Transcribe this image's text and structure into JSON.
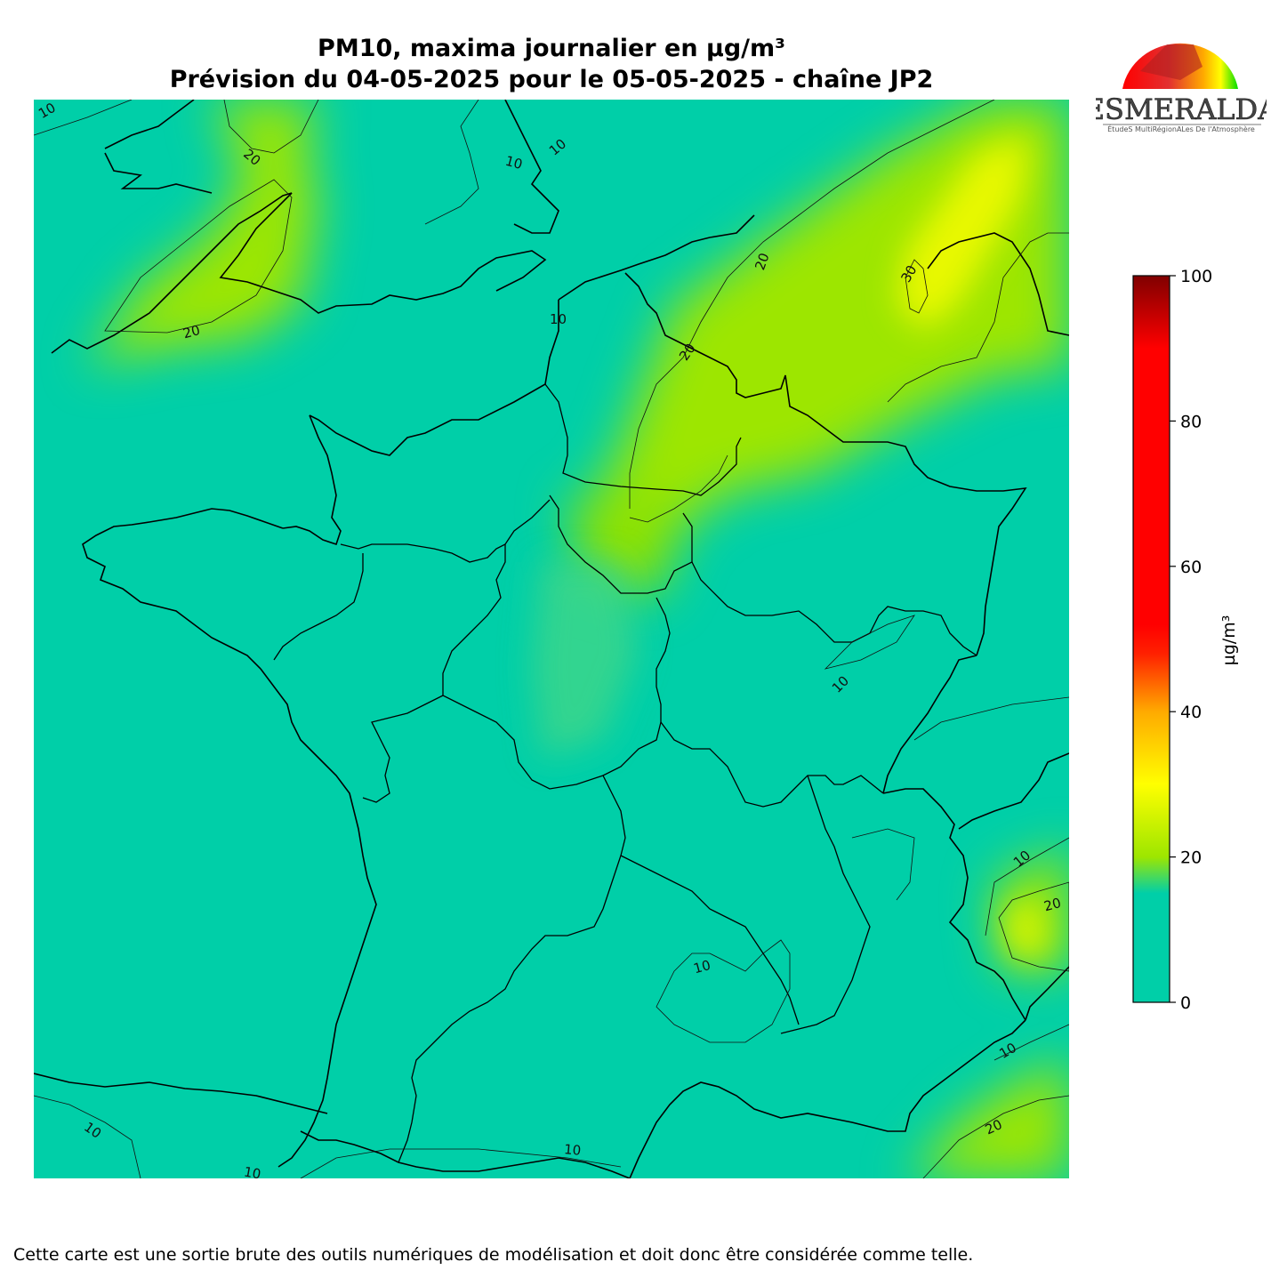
{
  "title": {
    "line1": "PM10, maxima journalier en µg/m³",
    "line2": "Prévision du 04-05-2025 pour le 05-05-2025 - chaîne JP2"
  },
  "colorbar": {
    "unit": "µg/m³",
    "ticks": [
      "0",
      "20",
      "40",
      "60",
      "80",
      "100"
    ],
    "range": [
      0,
      100
    ],
    "stops": [
      {
        "value": 0,
        "color": "#00cfa8"
      },
      {
        "value": 15,
        "color": "#00cfa8"
      },
      {
        "value": 20,
        "color": "#9de600"
      },
      {
        "value": 30,
        "color": "#ffff00"
      },
      {
        "value": 40,
        "color": "#ffaa00"
      },
      {
        "value": 48,
        "color": "#ff2000"
      },
      {
        "value": 52,
        "color": "#ff0000"
      },
      {
        "value": 90,
        "color": "#ff0000"
      },
      {
        "value": 100,
        "color": "#800000"
      }
    ]
  },
  "contour_labels": [
    {
      "text": "10"
    },
    {
      "text": "20"
    },
    {
      "text": "10"
    },
    {
      "text": "10"
    },
    {
      "text": "20"
    },
    {
      "text": "30"
    },
    {
      "text": "20"
    },
    {
      "text": "10"
    },
    {
      "text": "20"
    },
    {
      "text": "10"
    },
    {
      "text": "10"
    },
    {
      "text": "20"
    },
    {
      "text": "10"
    },
    {
      "text": "10"
    },
    {
      "text": "20"
    },
    {
      "text": "10"
    },
    {
      "text": "10"
    },
    {
      "text": "10"
    }
  ],
  "logo": {
    "name": "ESMERALDA",
    "tagline": "ÉtudeS MultiRégionALes De l'Atmosphère"
  },
  "disclaimer": "Cette carte est une sortie brute des outils numériques de modélisation et doit donc être considérée comme telle.",
  "colors": {
    "background_field": "#00cfa8",
    "moderate_field": "#9de600",
    "high_field": "#ffff00"
  }
}
